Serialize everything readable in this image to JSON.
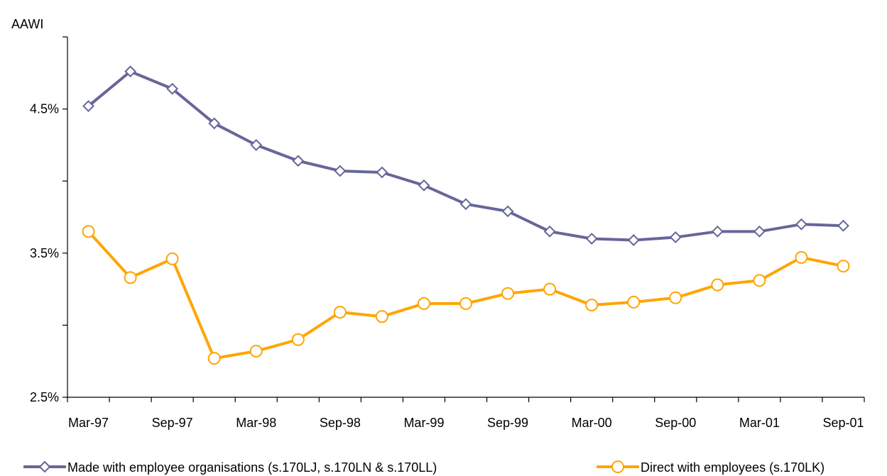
{
  "chart_data": {
    "type": "line",
    "title": "",
    "ylabel": "AAWI",
    "xlabel": "",
    "x": [
      "Mar-97",
      "Jun-97",
      "Sep-97",
      "Dec-97",
      "Mar-98",
      "Jun-98",
      "Sep-98",
      "Dec-98",
      "Mar-99",
      "Jun-99",
      "Sep-99",
      "Dec-99",
      "Mar-00",
      "Jun-00",
      "Sep-00",
      "Dec-00",
      "Mar-01",
      "Jun-01",
      "Sep-01"
    ],
    "x_tick_labels": [
      "Mar-97",
      "Sep-97",
      "Mar-98",
      "Sep-98",
      "Mar-99",
      "Sep-99",
      "Mar-00",
      "Sep-00",
      "Mar-01",
      "Sep-01"
    ],
    "ylim": [
      2.5,
      5.0
    ],
    "y_ticks": [
      2.5,
      3.0,
      3.5,
      4.0,
      4.5,
      5.0
    ],
    "y_tick_labels": [
      "2.5%",
      "",
      "3.5%",
      "",
      "4.5%",
      ""
    ],
    "grid": false,
    "legend_position": "bottom",
    "series": [
      {
        "name": "Made with employee organisations (s.170LJ, s.170LN & s.170LL)",
        "color": "#666699",
        "marker": "diamond",
        "values": [
          4.52,
          4.76,
          4.64,
          4.4,
          4.25,
          4.14,
          4.07,
          4.06,
          3.97,
          3.84,
          3.79,
          3.65,
          3.6,
          3.59,
          3.61,
          3.65,
          3.65,
          3.7,
          3.69
        ]
      },
      {
        "name": "Direct with employees (s.170LK)",
        "color": "#FFA500",
        "marker": "circle",
        "values": [
          3.65,
          3.33,
          3.46,
          2.77,
          2.82,
          2.9,
          3.09,
          3.06,
          3.15,
          3.15,
          3.22,
          3.25,
          3.14,
          3.16,
          3.19,
          3.28,
          3.31,
          3.47,
          3.41
        ]
      }
    ]
  }
}
